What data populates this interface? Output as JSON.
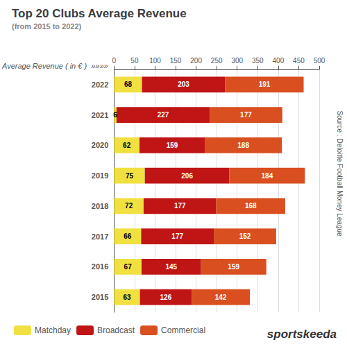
{
  "chart_data": {
    "type": "bar",
    "title": "Top 20 Clubs Average Revenue",
    "subtitle": "(from 2015 to 2022)",
    "xlabel": "Average Revenue ( in € )  »»»»",
    "categories": [
      "2015",
      "2016",
      "2017",
      "2018",
      "2019",
      "2020",
      "2021",
      "2022"
    ],
    "series": [
      {
        "name": "Matchday",
        "color": "#f0e040",
        "values": [
          63,
          67,
          66,
          72,
          75,
          62,
          6,
          68
        ]
      },
      {
        "name": "Broadcast",
        "color": "#bf1515",
        "values": [
          126,
          145,
          177,
          177,
          206,
          159,
          227,
          203
        ]
      },
      {
        "name": "Commercial",
        "color": "#d94f20",
        "values": [
          142,
          159,
          152,
          168,
          184,
          188,
          177,
          191
        ]
      }
    ],
    "xlim": [
      0,
      500
    ],
    "xticks": [
      0,
      50,
      100,
      150,
      200,
      250,
      300,
      350,
      400,
      450,
      500
    ],
    "orientation": "horizontal",
    "stacked": true,
    "data_labels": true,
    "grid": true,
    "legend": "lower left",
    "annotations": [
      "Source : Deloitte Football Money League",
      "sportskeeda"
    ]
  }
}
